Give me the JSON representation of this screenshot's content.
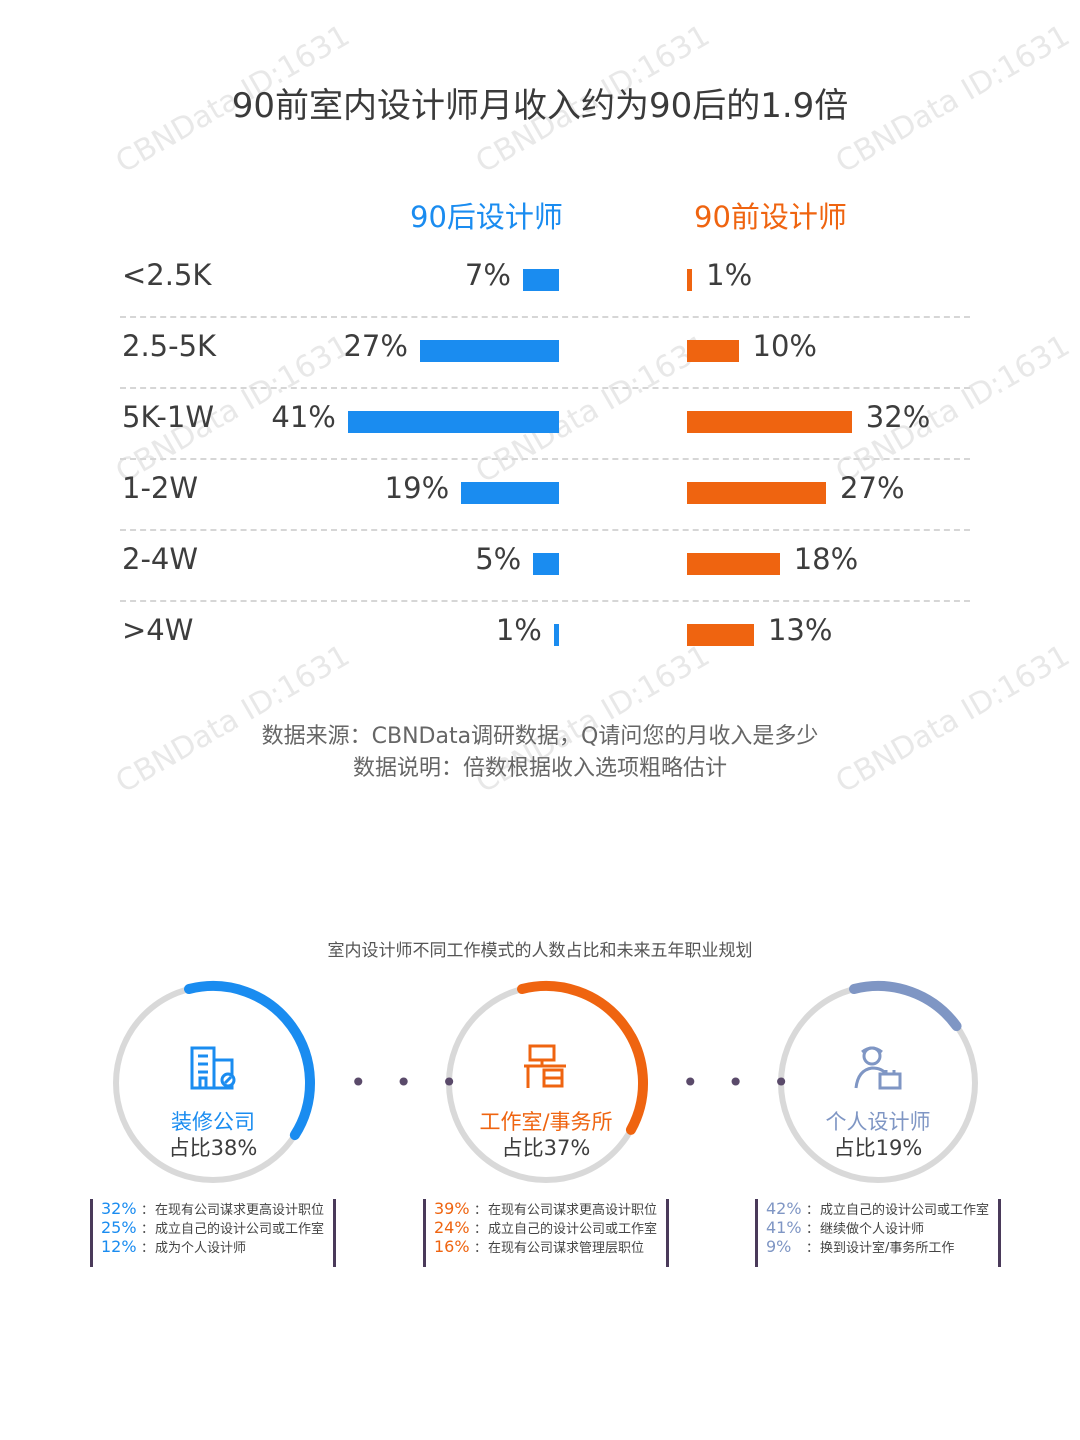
{
  "title": "90前室内设计师月收入约为90后的1.9倍",
  "columns": {
    "left": "90后设计师",
    "right": "90前设计师"
  },
  "colors": {
    "blue": "#1a8cf0",
    "orange": "#ef6410",
    "slate": "#7f96c4"
  },
  "chart_data": {
    "type": "bar",
    "title": "90前室内设计师月收入约为90后的1.9倍",
    "categories": [
      "<2.5K",
      "2.5-5K",
      "5K-1W",
      "1-2W",
      "2-4W",
      ">4W"
    ],
    "series": [
      {
        "name": "90后设计师",
        "values": [
          7,
          27,
          41,
          19,
          5,
          1
        ]
      },
      {
        "name": "90前设计师",
        "values": [
          1,
          10,
          32,
          27,
          18,
          13
        ]
      }
    ],
    "value_labels_left": [
      "7%",
      "27%",
      "41%",
      "19%",
      "5%",
      "1%"
    ],
    "value_labels_right": [
      "1%",
      "10%",
      "32%",
      "27%",
      "18%",
      "13%"
    ],
    "unit": "%",
    "orientation": "horizontal, mirrored"
  },
  "notes": {
    "source": "数据来源：CBNData调研数据，Q请问您的月收入是多少",
    "explain": "数据说明：倍数根据收入选项粗略估计"
  },
  "section2": {
    "title": "室内设计师不同工作模式的人数占比和未来五年职业规划",
    "rings": [
      {
        "name": "装修公司",
        "share_label": "占比38%",
        "share": 38,
        "color": "#1a8cf0",
        "icon": "office-building-icon",
        "plans": [
          {
            "pct": "32%",
            "text": "在现有公司谋求更高设计职位"
          },
          {
            "pct": "25%",
            "text": "成立自己的设计公司或工作室"
          },
          {
            "pct": "12%",
            "text": "成为个人设计师"
          }
        ]
      },
      {
        "name": "工作室/事务所",
        "share_label": "占比37%",
        "share": 37,
        "color": "#ef6410",
        "icon": "studio-desk-icon",
        "plans": [
          {
            "pct": "39%",
            "text": "在现有公司谋求更高设计职位"
          },
          {
            "pct": "24%",
            "text": "成立自己的设计公司或工作室"
          },
          {
            "pct": "16%",
            "text": "在现有公司谋求管理层职位"
          }
        ]
      },
      {
        "name": "个人设计师",
        "share_label": "占比19%",
        "share": 19,
        "color": "#7f96c4",
        "icon": "designer-person-icon",
        "plans": [
          {
            "pct": "42%",
            "text": "成立自己的设计公司或工作室"
          },
          {
            "pct": "41%",
            "text": "继续做个人设计师"
          },
          {
            "pct": "9%",
            "text": "换到设计室/事务所工作"
          }
        ]
      }
    ],
    "separator": "• • •"
  },
  "watermark": "CBNData ID:1631"
}
